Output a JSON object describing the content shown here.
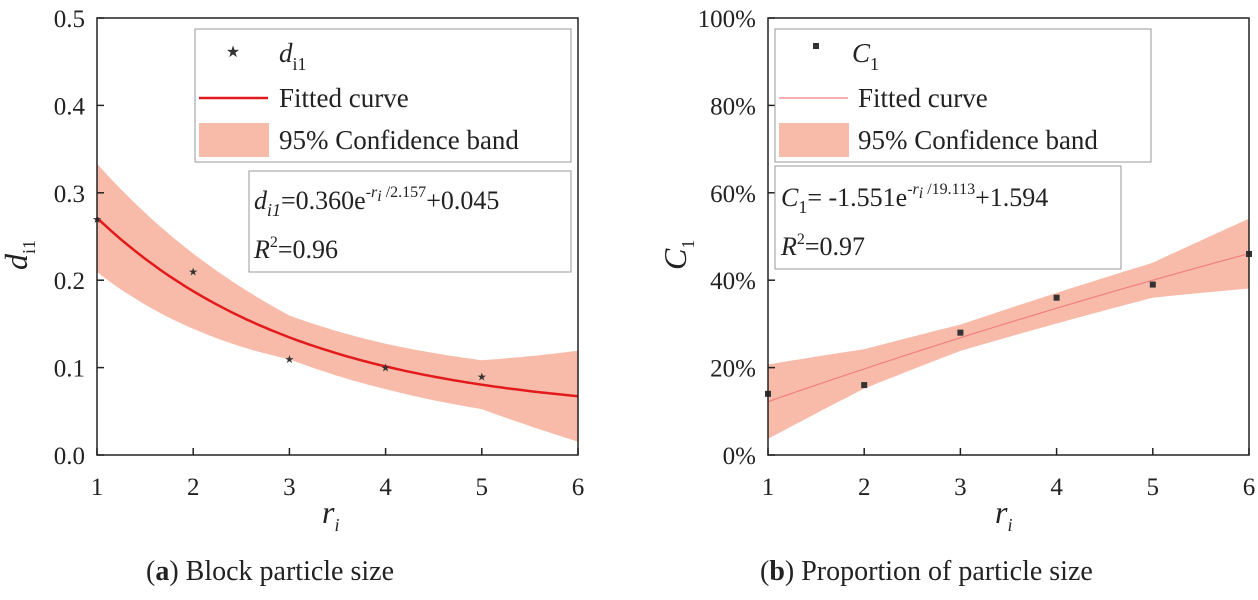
{
  "chart_data": [
    {
      "type": "scatter",
      "caption": {
        "letter": "a",
        "text": "Block particle size"
      },
      "xlabel": {
        "base": "r",
        "sub": "i"
      },
      "ylabel": {
        "base": "d",
        "sub": "i1"
      },
      "xlim": [
        1,
        6
      ],
      "ylim": [
        0.0,
        0.5
      ],
      "xticks": [
        1,
        2,
        3,
        4,
        5,
        6
      ],
      "yticks": [
        0.0,
        0.1,
        0.2,
        0.3,
        0.4,
        0.5
      ],
      "ytick_labels": [
        "0.0",
        "0.1",
        "0.2",
        "0.3",
        "0.4",
        "0.5"
      ],
      "points": {
        "x": [
          1,
          2,
          3,
          4,
          5
        ],
        "y": [
          0.27,
          0.21,
          0.11,
          0.1,
          0.09
        ]
      },
      "fit": {
        "a": 0.36,
        "b": 2.157,
        "c": 0.045
      },
      "band_half_width": [
        0.062,
        0.043,
        0.025,
        0.026,
        0.028,
        0.052
      ],
      "legend": {
        "marker_base": "d",
        "marker_sub": "i1",
        "fit_label": "Fitted curve",
        "band_label": "95% Confidence band"
      },
      "equation": {
        "lhs_base": "d",
        "lhs_sub": "i1",
        "text1": "=0.360e",
        "sup_neg": "-",
        "sup_r": "r",
        "sup_i": "i",
        "sup_rest": " /2.157",
        "text2": "+0.045",
        "r2_base": "R",
        "r2_sup": "2",
        "r2_value": "=0.96"
      }
    },
    {
      "type": "scatter",
      "caption": {
        "letter": "b",
        "text": "Proportion of particle size"
      },
      "xlabel": {
        "base": "r",
        "sub": "i"
      },
      "ylabel": {
        "base": "C",
        "sub": "1"
      },
      "xlim": [
        1,
        6
      ],
      "ylim": [
        0,
        1
      ],
      "xticks": [
        1,
        2,
        3,
        4,
        5,
        6
      ],
      "yticks": [
        0,
        0.2,
        0.4,
        0.6,
        0.8,
        1.0
      ],
      "ytick_labels": [
        "0%",
        "20%",
        "40%",
        "60%",
        "80%",
        "100%"
      ],
      "points": {
        "x": [
          1,
          2,
          3,
          4,
          5,
          6
        ],
        "y": [
          0.14,
          0.16,
          0.28,
          0.36,
          0.39,
          0.46
        ]
      },
      "fit": {
        "a": -1.551,
        "b": 19.113,
        "c": 1.594
      },
      "band_half_width": [
        0.085,
        0.045,
        0.03,
        0.035,
        0.04,
        0.08
      ],
      "legend": {
        "marker_base": "C",
        "marker_sub": "1",
        "fit_label": "Fitted curve",
        "band_label": "95% Confidence band"
      },
      "equation": {
        "lhs_base": "C",
        "lhs_sub": "1",
        "text1": "= -1.551e",
        "sup_neg": "-",
        "sup_r": "r",
        "sup_i": "i",
        "sup_rest": " /19.113",
        "text2": "+1.594",
        "r2_base": "R",
        "r2_sup": "2",
        "r2_value": "=0.97"
      }
    }
  ],
  "colors": {
    "fit_a": "#e31a1c",
    "fit_b": "#f08080",
    "band": "#f8bba9",
    "axis": "#222222",
    "point": "#333333"
  }
}
